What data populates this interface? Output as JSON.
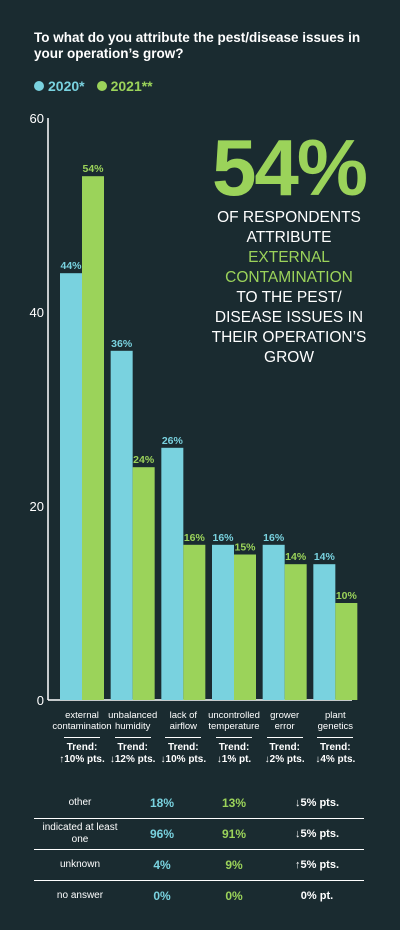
{
  "title": "To what do you attribute the pest/disease issues in your operation’s grow?",
  "colors": {
    "c2020": "#79d2df",
    "c2021": "#9bd35a",
    "axis": "#ffffff",
    "background": "#1a2b30"
  },
  "legend": [
    {
      "label": "2020*",
      "color": "#79d2df"
    },
    {
      "label": "2021**",
      "color": "#9bd35a"
    }
  ],
  "callout": {
    "big": "54%",
    "line1": "OF RESPONDENTS",
    "line2": "ATTRIBUTE",
    "line3": "EXTERNAL",
    "line4": "CONTAMINATION",
    "line5": "TO THE PEST/",
    "line6": "DISEASE ISSUES IN",
    "line7": "THEIR OPERATION’S",
    "line8": "GROW"
  },
  "chart_data": {
    "type": "bar",
    "categories": [
      "external contamination",
      "unbalanced humidity",
      "lack of airflow",
      "uncontrolled temperature",
      "grower error",
      "plant genetics"
    ],
    "series": [
      {
        "name": "2020*",
        "values": [
          44,
          36,
          26,
          16,
          16,
          14
        ],
        "labels": [
          "44%",
          "36%",
          "26%",
          "16%",
          "16%",
          "14%"
        ]
      },
      {
        "name": "2021**",
        "values": [
          54,
          24,
          16,
          15,
          14,
          10
        ],
        "labels": [
          "54%",
          "24%",
          "16%",
          "15%",
          "14%",
          "10%"
        ]
      }
    ],
    "ylim": [
      0,
      60
    ],
    "yticks": [
      0,
      20,
      40,
      60
    ],
    "legend_position": "top-left",
    "grid": false
  },
  "categories_display": [
    [
      "external",
      "contamination"
    ],
    [
      "unbalanced",
      "humidity"
    ],
    [
      "lack of",
      "airflow"
    ],
    [
      "uncontrolled",
      "temperature"
    ],
    [
      "grower",
      "error"
    ],
    [
      "plant",
      "genetics"
    ]
  ],
  "trend_label": "Trend:",
  "trends": [
    "↑10% pts.",
    "↓12% pts.",
    "↓10% pts.",
    "↓1% pt.",
    "↓2% pts.",
    "↓4% pts."
  ],
  "stats": [
    {
      "label": "other",
      "v2020": "18%",
      "v2021": "13%",
      "trend": "↓5% pts."
    },
    {
      "label": "indicated at least one",
      "v2020": "96%",
      "v2021": "91%",
      "trend": "↓5% pts."
    },
    {
      "label": "unknown",
      "v2020": "4%",
      "v2021": "9%",
      "trend": "↑5% pts."
    },
    {
      "label": "no answer",
      "v2020": "0%",
      "v2021": "0%",
      "trend": "0% pt."
    }
  ]
}
